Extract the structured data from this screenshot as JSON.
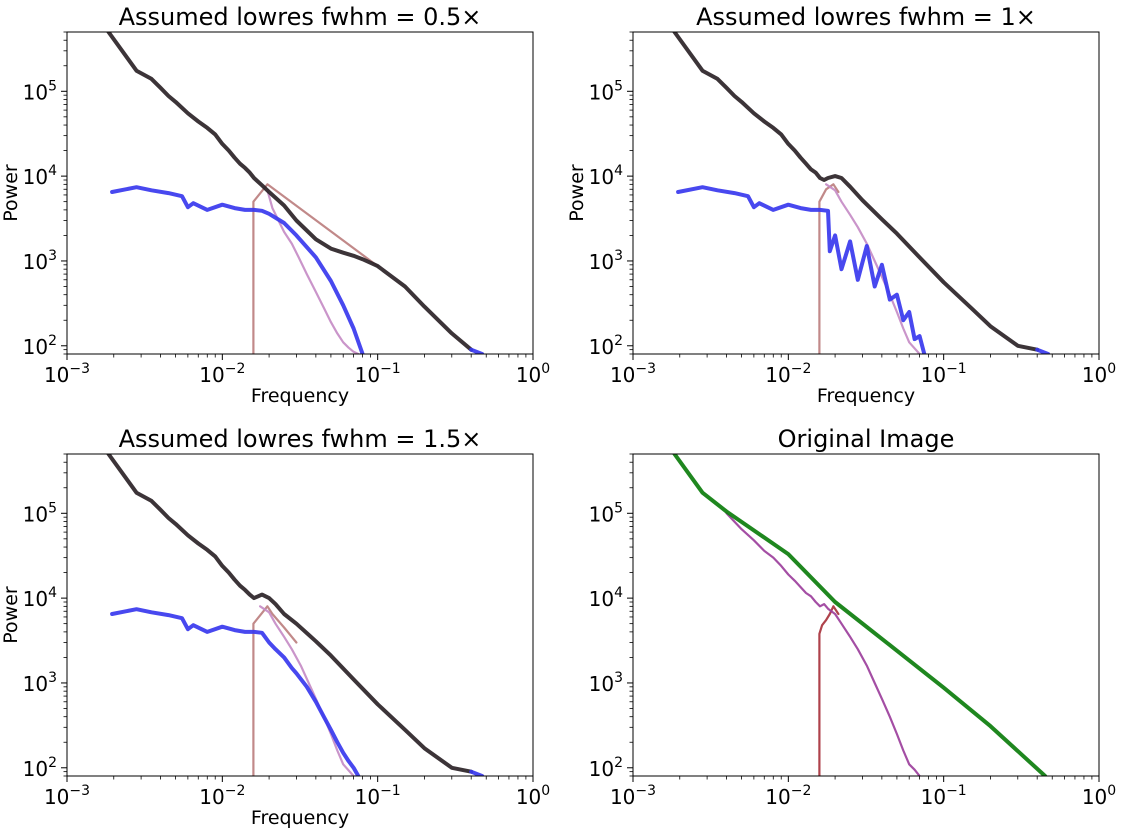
{
  "chart_data": [
    {
      "type": "line",
      "title": "Assumed lowres fwhm = 0.5×",
      "xlabel": "Frequency",
      "ylabel": "Power",
      "xscale": "log",
      "yscale": "log",
      "xlim": [
        0.001,
        1
      ],
      "ylim": [
        80,
        500000
      ],
      "xticks": [
        "10-3",
        "10-2",
        "10-1",
        "100"
      ],
      "yticks": [
        "102",
        "103",
        "104",
        "105"
      ],
      "grid": false,
      "series": [
        {
          "color": "#bc7f7f",
          "x": [
            0.01585,
            0.01585,
            0.0195,
            0.1
          ],
          "y": [
            80,
            5000,
            8000,
            870
          ]
        },
        {
          "color": "#c58cc5",
          "x": [
            0.0195,
            0.021,
            0.023,
            0.025,
            0.028,
            0.031,
            0.035,
            0.04,
            0.045,
            0.05,
            0.055,
            0.06,
            0.065,
            0.07,
            0.075
          ],
          "y": [
            6800,
            4200,
            3000,
            2200,
            1600,
            1100,
            700,
            430,
            280,
            190,
            140,
            110,
            95,
            85,
            80
          ]
        },
        {
          "color": "#3838ee",
          "x": [
            0.00195,
            0.0028,
            0.0035,
            0.0045,
            0.0055,
            0.006,
            0.0065,
            0.008,
            0.01,
            0.012,
            0.014,
            0.016,
            0.018,
            0.02,
            0.025,
            0.03,
            0.04,
            0.05,
            0.06,
            0.07,
            0.08
          ],
          "y": [
            6500,
            7400,
            6800,
            6300,
            5800,
            4300,
            4800,
            4000,
            4600,
            4200,
            4000,
            4000,
            3900,
            3600,
            2800,
            2000,
            1100,
            580,
            300,
            160,
            80
          ]
        },
        {
          "color": "#2b2327",
          "x": [
            0.00185,
            0.0028,
            0.0035,
            0.004,
            0.0045,
            0.005,
            0.006,
            0.007,
            0.008,
            0.009,
            0.01,
            0.011,
            0.012,
            0.013,
            0.014,
            0.015,
            0.016,
            0.018,
            0.02,
            0.025,
            0.03,
            0.04,
            0.05,
            0.06,
            0.07,
            0.08,
            0.09,
            0.1,
            0.15,
            0.2,
            0.3,
            0.4
          ],
          "y": [
            500000,
            175000,
            140000,
            110000,
            88000,
            75000,
            55000,
            44000,
            37000,
            31000,
            24000,
            20000,
            16500,
            14000,
            12500,
            11000,
            9500,
            7800,
            6500,
            4500,
            3000,
            1800,
            1400,
            1250,
            1150,
            1050,
            950,
            870,
            500,
            290,
            140,
            90
          ]
        },
        {
          "color": "#3838ee",
          "x": [
            0.4,
            0.47
          ],
          "y": [
            90,
            80
          ]
        }
      ]
    },
    {
      "type": "line",
      "title": "Assumed lowres fwhm = 1×",
      "xlabel": "Frequency",
      "ylabel": "Power",
      "xscale": "log",
      "yscale": "log",
      "xlim": [
        0.001,
        1
      ],
      "ylim": [
        80,
        500000
      ],
      "xticks": [
        "10-3",
        "10-2",
        "10-1",
        "100"
      ],
      "yticks": [
        "102",
        "103",
        "104",
        "105"
      ],
      "grid": false,
      "series": [
        {
          "color": "#bc7f7f",
          "x": [
            0.01585,
            0.01585,
            0.0175,
            0.0195,
            0.021
          ],
          "y": [
            80,
            5000,
            7000,
            8000,
            6500
          ]
        },
        {
          "color": "#c58cc5",
          "x": [
            0.0175,
            0.02,
            0.022,
            0.025,
            0.028,
            0.032,
            0.036,
            0.04,
            0.045,
            0.05,
            0.055,
            0.06,
            0.07
          ],
          "y": [
            8000,
            6800,
            5000,
            3500,
            2500,
            1600,
            1000,
            650,
            400,
            250,
            160,
            110,
            80
          ]
        },
        {
          "color": "#3838ee",
          "x": [
            0.00195,
            0.0028,
            0.0035,
            0.0045,
            0.0055,
            0.006,
            0.0065,
            0.008,
            0.01,
            0.012,
            0.014,
            0.016,
            0.018,
            0.0185,
            0.02,
            0.022,
            0.025,
            0.028,
            0.032,
            0.036,
            0.04,
            0.045,
            0.05,
            0.055,
            0.06,
            0.065,
            0.07,
            0.075
          ],
          "y": [
            6500,
            7400,
            6800,
            6300,
            5800,
            4300,
            4800,
            4000,
            4600,
            4200,
            4000,
            4000,
            3900,
            1300,
            2000,
            800,
            1700,
            600,
            1500,
            500,
            900,
            350,
            400,
            200,
            250,
            120,
            130,
            80
          ]
        },
        {
          "color": "#2b2327",
          "x": [
            0.00185,
            0.0028,
            0.0035,
            0.004,
            0.0045,
            0.005,
            0.006,
            0.007,
            0.008,
            0.009,
            0.01,
            0.011,
            0.012,
            0.013,
            0.014,
            0.015,
            0.016,
            0.017,
            0.018,
            0.02,
            0.022,
            0.025,
            0.03,
            0.04,
            0.05,
            0.07,
            0.1,
            0.15,
            0.2,
            0.3,
            0.4
          ],
          "y": [
            500000,
            175000,
            140000,
            110000,
            88000,
            75000,
            55000,
            44000,
            37000,
            31000,
            24000,
            20000,
            16500,
            14000,
            12000,
            11000,
            9500,
            9000,
            9500,
            10000,
            9500,
            7500,
            5200,
            3100,
            2100,
            1100,
            560,
            280,
            170,
            100,
            90
          ]
        },
        {
          "color": "#3838ee",
          "x": [
            0.4,
            0.47
          ],
          "y": [
            90,
            80
          ]
        }
      ]
    },
    {
      "type": "line",
      "title": "Assumed lowres fwhm = 1.5×",
      "xlabel": "Frequency",
      "ylabel": "Power",
      "xscale": "log",
      "yscale": "log",
      "xlim": [
        0.001,
        1
      ],
      "ylim": [
        80,
        500000
      ],
      "xticks": [
        "10-3",
        "10-2",
        "10-1",
        "100"
      ],
      "yticks": [
        "102",
        "103",
        "104",
        "105"
      ],
      "grid": false,
      "series": [
        {
          "color": "#bc7f7f",
          "x": [
            0.01585,
            0.01585,
            0.0195,
            0.021,
            0.025,
            0.03
          ],
          "y": [
            80,
            5000,
            8000,
            6500,
            4500,
            3000
          ]
        },
        {
          "color": "#c58cc5",
          "x": [
            0.0175,
            0.02,
            0.022,
            0.025,
            0.028,
            0.032,
            0.036,
            0.04,
            0.045,
            0.05,
            0.055,
            0.06,
            0.07
          ],
          "y": [
            8000,
            6800,
            5000,
            3500,
            2500,
            1600,
            1000,
            650,
            400,
            250,
            160,
            110,
            80
          ]
        },
        {
          "color": "#3838ee",
          "x": [
            0.00195,
            0.0028,
            0.0035,
            0.0045,
            0.0055,
            0.006,
            0.0065,
            0.008,
            0.01,
            0.012,
            0.014,
            0.016,
            0.018,
            0.02,
            0.022,
            0.025,
            0.028,
            0.03,
            0.035,
            0.04,
            0.045,
            0.05,
            0.055,
            0.06,
            0.065,
            0.07,
            0.075
          ],
          "y": [
            6500,
            7400,
            6800,
            6300,
            5800,
            4300,
            4800,
            4000,
            4600,
            4200,
            4000,
            4000,
            3900,
            3000,
            2500,
            2000,
            1500,
            1300,
            900,
            600,
            400,
            280,
            200,
            150,
            120,
            100,
            80
          ]
        },
        {
          "color": "#2b2327",
          "x": [
            0.00185,
            0.0028,
            0.0035,
            0.004,
            0.0045,
            0.005,
            0.006,
            0.007,
            0.008,
            0.009,
            0.01,
            0.011,
            0.012,
            0.013,
            0.014,
            0.015,
            0.016,
            0.017,
            0.018,
            0.02,
            0.022,
            0.025,
            0.03,
            0.04,
            0.05,
            0.07,
            0.1,
            0.15,
            0.2,
            0.3,
            0.4
          ],
          "y": [
            500000,
            175000,
            140000,
            110000,
            88000,
            75000,
            55000,
            44000,
            37000,
            31000,
            24000,
            20000,
            16500,
            14000,
            12500,
            11000,
            10000,
            10500,
            11000,
            10000,
            8500,
            6500,
            5000,
            3100,
            2100,
            1100,
            560,
            280,
            170,
            100,
            90
          ]
        },
        {
          "color": "#3838ee",
          "x": [
            0.4,
            0.47
          ],
          "y": [
            90,
            80
          ]
        }
      ]
    },
    {
      "type": "line",
      "title": "Original Image",
      "xlabel": "",
      "ylabel": "",
      "xscale": "log",
      "yscale": "log",
      "xlim": [
        0.001,
        1
      ],
      "ylim": [
        80,
        500000
      ],
      "xticks": [
        "10-3",
        "10-2",
        "10-1",
        "100"
      ],
      "yticks": [
        "102",
        "103",
        "104",
        "105"
      ],
      "grid": false,
      "series": [
        {
          "color": "#a8323c",
          "x": [
            0.01585,
            0.01585,
            0.0165,
            0.0175,
            0.0185,
            0.0195,
            0.021
          ],
          "y": [
            80,
            3800,
            4800,
            5500,
            6500,
            8000,
            6500
          ]
        },
        {
          "color": "#9c3f9c",
          "x": [
            0.004,
            0.005,
            0.006,
            0.007,
            0.008,
            0.009,
            0.01,
            0.011,
            0.012,
            0.013,
            0.014,
            0.015,
            0.016,
            0.017,
            0.018,
            0.02,
            0.022,
            0.025,
            0.028,
            0.032,
            0.036,
            0.04,
            0.045,
            0.05,
            0.055,
            0.06,
            0.065,
            0.07
          ],
          "y": [
            100000,
            65000,
            48000,
            36000,
            30000,
            24000,
            19000,
            16000,
            13500,
            11500,
            10500,
            9000,
            8000,
            8500,
            7500,
            6500,
            5000,
            3500,
            2500,
            1600,
            1000,
            650,
            400,
            250,
            160,
            110,
            95,
            80
          ]
        },
        {
          "color": "#0c7d0c",
          "x": [
            0.00185,
            0.0028,
            0.004,
            0.01,
            0.02,
            0.05,
            0.1,
            0.2,
            0.45
          ],
          "y": [
            500000,
            175000,
            105000,
            33000,
            9000,
            2400,
            880,
            310,
            80
          ]
        }
      ]
    }
  ]
}
